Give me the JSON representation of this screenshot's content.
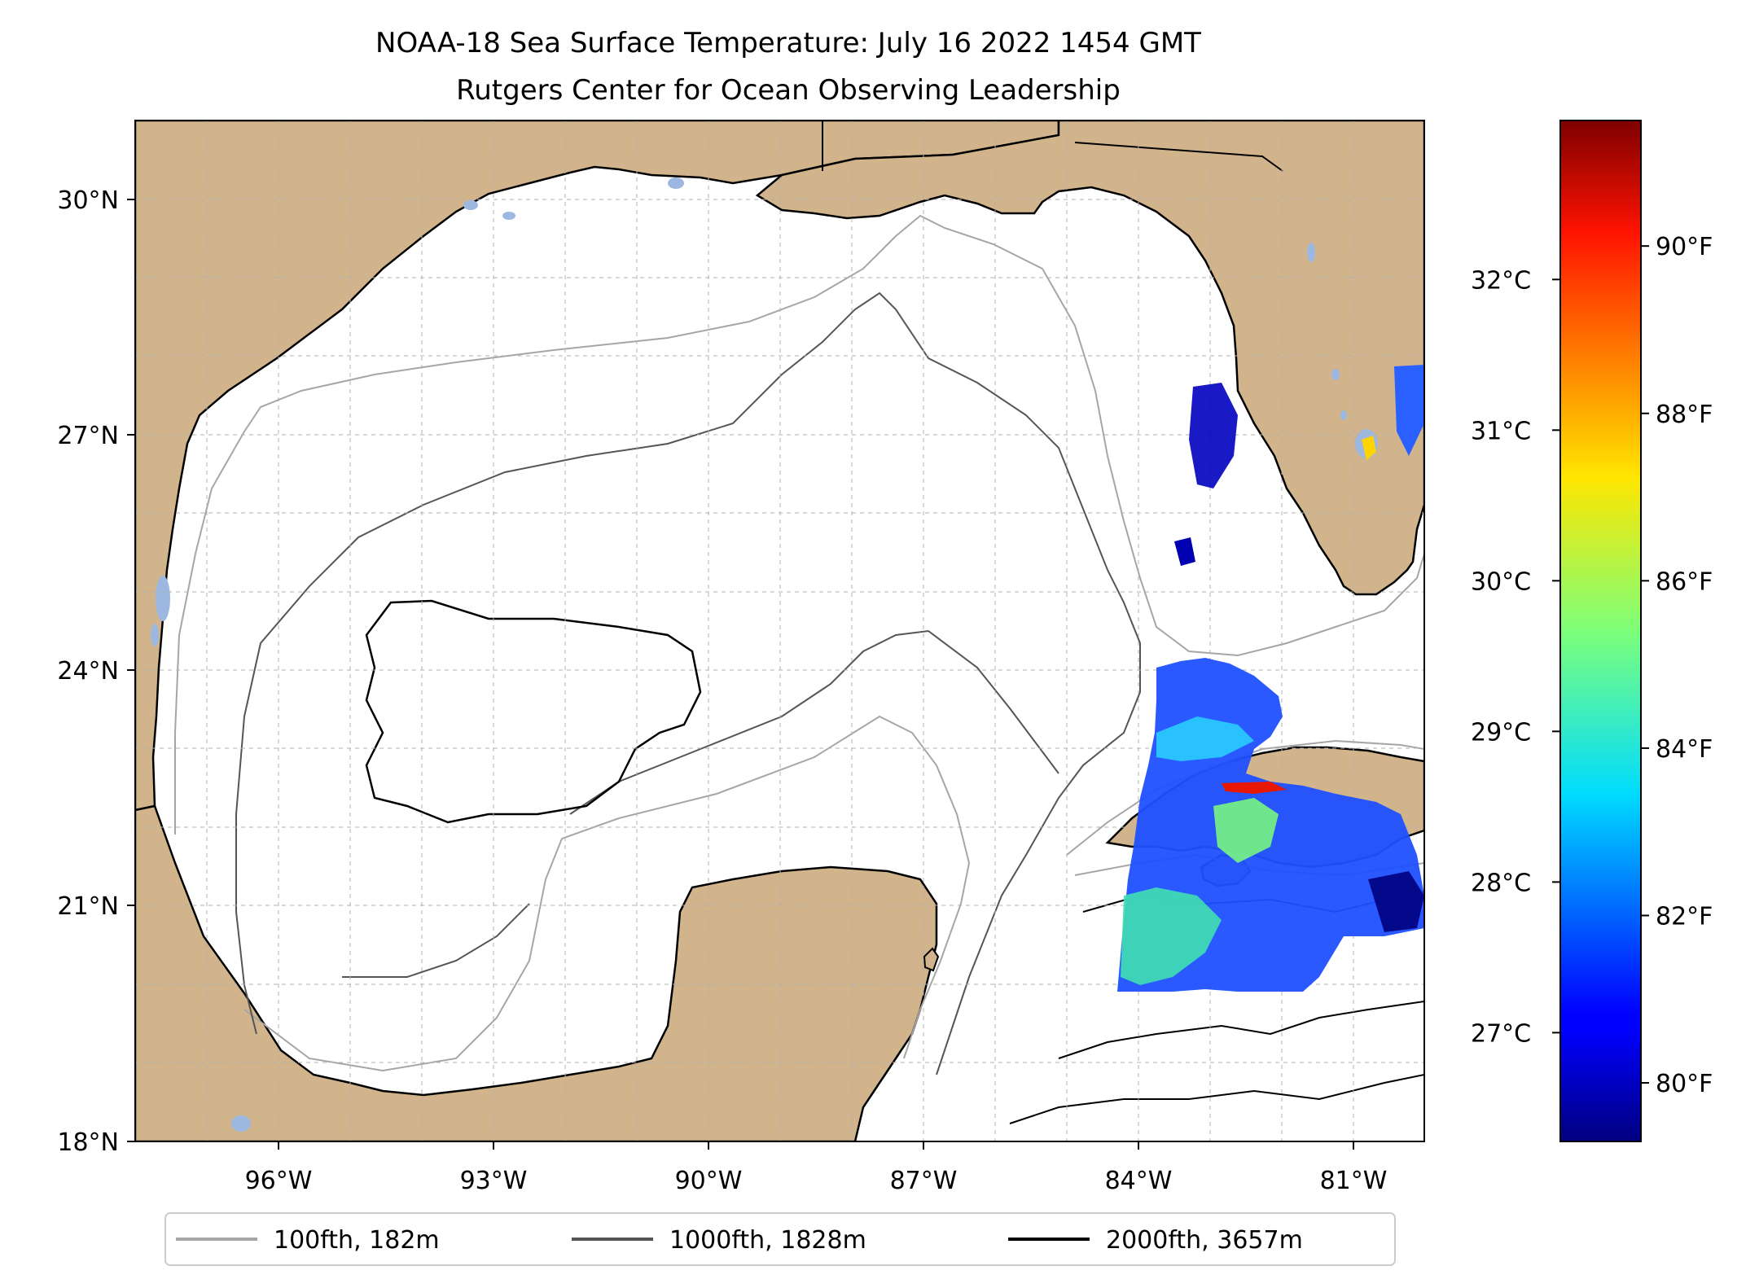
{
  "title": {
    "line1": "NOAA-18 Sea Surface Temperature: July 16 2022 1454 GMT",
    "line2": "Rutgers Center for Ocean Observing Leadership"
  },
  "map": {
    "lon_range": [
      -98.0,
      -80.0
    ],
    "lat_range": [
      18.0,
      31.0
    ],
    "lon_ticks": [
      {
        "value": -96,
        "label": "96°W"
      },
      {
        "value": -93,
        "label": "93°W"
      },
      {
        "value": -90,
        "label": "90°W"
      },
      {
        "value": -87,
        "label": "87°W"
      },
      {
        "value": -84,
        "label": "84°W"
      },
      {
        "value": -81,
        "label": "81°W"
      }
    ],
    "lat_ticks": [
      {
        "value": 30,
        "label": "30°N"
      },
      {
        "value": 27,
        "label": "27°N"
      },
      {
        "value": 24,
        "label": "24°N"
      },
      {
        "value": 21,
        "label": "21°N"
      },
      {
        "value": 18,
        "label": "18°N"
      }
    ],
    "gridlines": true
  },
  "colorbar": {
    "fahrenheit_ticks": [
      {
        "value": 80,
        "label": "80°F"
      },
      {
        "value": 82,
        "label": "82°F"
      },
      {
        "value": 84,
        "label": "84°F"
      },
      {
        "value": 86,
        "label": "86°F"
      },
      {
        "value": 88,
        "label": "88°F"
      },
      {
        "value": 90,
        "label": "90°F"
      }
    ],
    "celsius_ticks": [
      {
        "value": 27,
        "label": "27°C"
      },
      {
        "value": 28,
        "label": "28°C"
      },
      {
        "value": 29,
        "label": "29°C"
      },
      {
        "value": 30,
        "label": "30°C"
      },
      {
        "value": 31,
        "label": "31°C"
      },
      {
        "value": 32,
        "label": "32°C"
      }
    ],
    "range_f": [
      79.3,
      91.5
    ],
    "colormap": "jet"
  },
  "legend": {
    "items": [
      {
        "label": "100fth, 182m",
        "color": "#a6a6a6"
      },
      {
        "label": "1000fth, 1828m",
        "color": "#555555"
      },
      {
        "label": "2000fth, 3657m",
        "color": "#000000"
      }
    ]
  },
  "colors": {
    "land": "#d2b48c",
    "lakes": "#9db8e0",
    "coast": "#000000"
  }
}
